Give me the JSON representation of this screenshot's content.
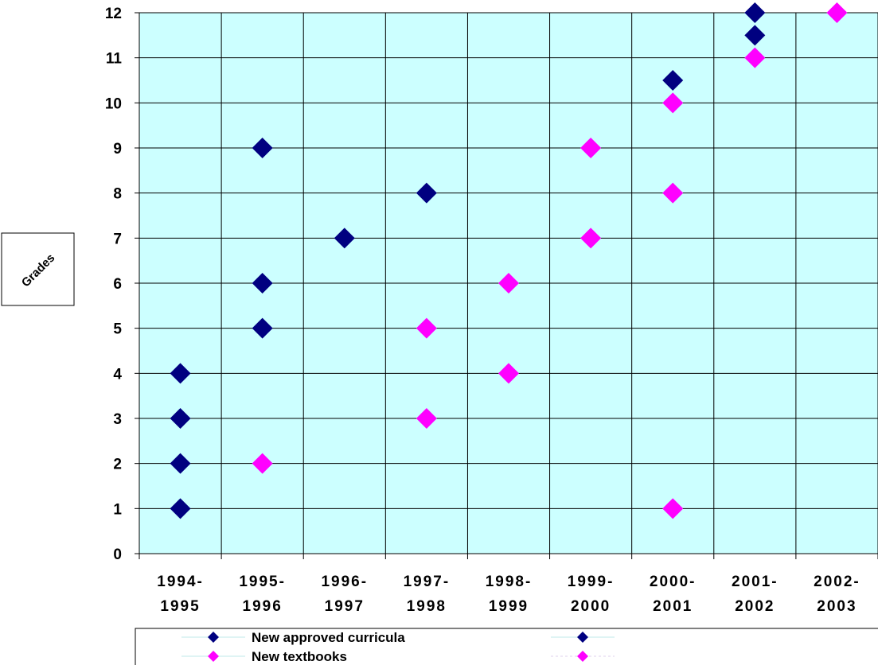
{
  "chart_data": {
    "type": "scatter",
    "ylabel": "Grades",
    "ylim": [
      0,
      12
    ],
    "yticks": [
      "0",
      "1",
      "2",
      "3",
      "4",
      "5",
      "6",
      "7",
      "8",
      "9",
      "10",
      "11",
      "12"
    ],
    "categories": [
      [
        "1994-",
        "1995"
      ],
      [
        "1995-",
        "1996"
      ],
      [
        "1996-",
        "1997"
      ],
      [
        "1997-",
        "1998"
      ],
      [
        "1998-",
        "1999"
      ],
      [
        "1999-",
        "2000"
      ],
      [
        "2000-",
        "2001"
      ],
      [
        "2001-",
        "2002"
      ],
      [
        "2002-",
        "2003"
      ]
    ],
    "grid": true,
    "legend_position": "bottom",
    "plot_background": "#ccffff",
    "series": [
      {
        "name": "New approved curricula",
        "color": "#000080",
        "marker": "diamond",
        "points": [
          {
            "x": "1994-1995",
            "y": 1
          },
          {
            "x": "1994-1995",
            "y": 2
          },
          {
            "x": "1994-1995",
            "y": 3
          },
          {
            "x": "1994-1995",
            "y": 4
          },
          {
            "x": "1995-1996",
            "y": 5
          },
          {
            "x": "1995-1996",
            "y": 6
          },
          {
            "x": "1995-1996",
            "y": 9
          },
          {
            "x": "1996-1997",
            "y": 7
          },
          {
            "x": "1997-1998",
            "y": 8
          },
          {
            "x": "2000-2001",
            "y": 10.5
          },
          {
            "x": "2001-2002",
            "y": 11.5
          },
          {
            "x": "2001-2002",
            "y": 12
          }
        ]
      },
      {
        "name": "New textbooks",
        "color": "#ff00ff",
        "marker": "diamond",
        "points": [
          {
            "x": "1995-1996",
            "y": 2
          },
          {
            "x": "1997-1998",
            "y": 3
          },
          {
            "x": "1997-1998",
            "y": 5
          },
          {
            "x": "1998-1999",
            "y": 4
          },
          {
            "x": "1998-1999",
            "y": 6
          },
          {
            "x": "1999-2000",
            "y": 7
          },
          {
            "x": "1999-2000",
            "y": 9
          },
          {
            "x": "2000-2001",
            "y": 1
          },
          {
            "x": "2000-2001",
            "y": 8
          },
          {
            "x": "2000-2001",
            "y": 10
          },
          {
            "x": "2001-2002",
            "y": 11
          },
          {
            "x": "2002-2003",
            "y": 12
          }
        ]
      }
    ]
  }
}
